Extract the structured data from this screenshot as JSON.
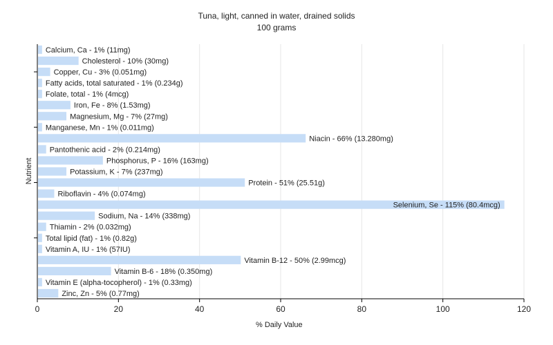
{
  "chart_data": {
    "type": "bar",
    "orientation": "horizontal",
    "title": "Tuna, light, canned in water, drained solids",
    "subtitle": "100 grams",
    "xlabel": "% Daily Value",
    "ylabel": "Nutrient",
    "xlim": [
      0,
      120
    ],
    "xticks": [
      0,
      20,
      40,
      60,
      80,
      100,
      120
    ],
    "grid": "vertical",
    "bar_color": "#c6ddf7",
    "categories": [
      "Calcium, Ca",
      "Cholesterol",
      "Copper, Cu",
      "Fatty acids, total saturated",
      "Folate, total",
      "Iron, Fe",
      "Magnesium, Mg",
      "Manganese, Mn",
      "Niacin",
      "Pantothenic acid",
      "Phosphorus, P",
      "Potassium, K",
      "Protein",
      "Riboflavin",
      "Selenium, Se",
      "Sodium, Na",
      "Thiamin",
      "Total lipid (fat)",
      "Vitamin A, IU",
      "Vitamin B-12",
      "Vitamin B-6",
      "Vitamin E (alpha-tocopherol)",
      "Zinc, Zn"
    ],
    "values": [
      1,
      10,
      3,
      1,
      1,
      8,
      7,
      1,
      66,
      2,
      16,
      7,
      51,
      4,
      115,
      14,
      2,
      1,
      1,
      50,
      18,
      1,
      5
    ],
    "labels": [
      "Calcium, Ca - 1% (11mg)",
      "Cholesterol - 10% (30mg)",
      "Copper, Cu - 3% (0.051mg)",
      "Fatty acids, total saturated - 1% (0.234g)",
      "Folate, total - 1% (4mcg)",
      "Iron, Fe - 8% (1.53mg)",
      "Magnesium, Mg - 7% (27mg)",
      "Manganese, Mn - 1% (0.011mg)",
      "Niacin - 66% (13.280mg)",
      "Pantothenic acid - 2% (0.214mg)",
      "Phosphorus, P - 16% (163mg)",
      "Potassium, K - 7% (237mg)",
      "Protein - 51% (25.51g)",
      "Riboflavin - 4% (0.074mg)",
      "Selenium, Se - 115% (80.4mcg)",
      "Sodium, Na - 14% (338mg)",
      "Thiamin - 2% (0.032mg)",
      "Total lipid (fat) - 1% (0.82g)",
      "Vitamin A, IU - 1% (57IU)",
      "Vitamin B-12 - 50% (2.99mcg)",
      "Vitamin B-6 - 18% (0.350mg)",
      "Vitamin E (alpha-tocopherol) - 1% (0.33mg)",
      "Zinc, Zn - 5% (0.77mg)"
    ]
  }
}
